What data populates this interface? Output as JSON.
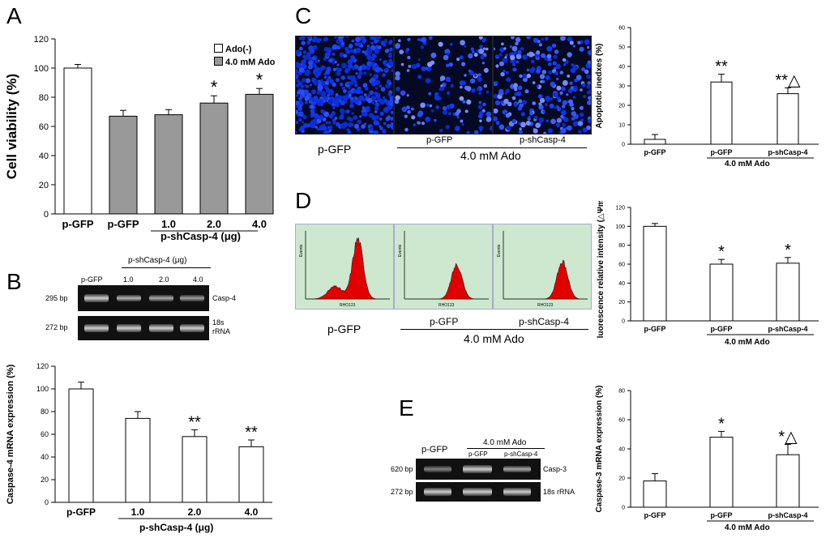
{
  "panels": {
    "A": {
      "letter": "A",
      "legend": [
        "Ado(-)",
        "4.0 mM Ado"
      ],
      "group_label": "p-shCasp-4 (μg)"
    },
    "B": {
      "letter": "B",
      "gel_header": "p-shCasp-4 (μg)",
      "gel_lanes": [
        "p-GFP",
        "1.0",
        "2.0",
        "4.0"
      ],
      "gel_rows": [
        {
          "size": "295 bp",
          "name": "Casp-4"
        },
        {
          "size": "272 bp",
          "name": "18s rRNA"
        }
      ],
      "group_label": "p-shCasp-4 (μg)"
    },
    "C": {
      "letter": "C",
      "image_labels": [
        "p-GFP",
        "p-GFP",
        "p-shCasp-4"
      ],
      "image_group": "4.0 mM Ado",
      "group_label": "4.0 mM Ado"
    },
    "D": {
      "letter": "D",
      "hist_labels": [
        "p-GFP",
        "p-GFP",
        "p-shCasp-4"
      ],
      "hist_group": "4.0 mM Ado",
      "hist_axis": [
        "RHO123",
        "RHO123",
        "RHO123"
      ],
      "hist_yaxis": [
        "Events",
        "Events",
        "Events"
      ],
      "group_label": "4.0 mM Ado"
    },
    "E": {
      "letter": "E",
      "gel_header": "4.0 mM Ado",
      "gel_lanes": [
        "p-GFP",
        "p-GFP",
        "p-shCasp-4"
      ],
      "gel_rows": [
        {
          "size": "620 bp",
          "name": "Casp-3"
        },
        {
          "size": "272 bp",
          "name": "18s rRNA"
        }
      ],
      "group_label": "4.0 mM Ado"
    }
  },
  "chart_data": [
    {
      "id": "A",
      "type": "bar",
      "ylabel": "Cell viability (%)",
      "categories": [
        "p-GFP",
        "p-GFP",
        "1.0",
        "2.0",
        "4.0"
      ],
      "values": [
        100,
        67,
        68,
        76,
        82
      ],
      "errors": [
        2.5,
        4,
        3.5,
        5,
        4
      ],
      "fills": [
        "#ffffff",
        "#999999",
        "#999999",
        "#999999",
        "#999999"
      ],
      "marks": [
        "",
        "",
        "",
        "*",
        "*"
      ],
      "ylim": [
        0,
        120
      ],
      "yticks": [
        0,
        20,
        40,
        60,
        80,
        100,
        120
      ]
    },
    {
      "id": "B",
      "type": "bar",
      "ylabel": "Caspase-4 mRNA expression (%)",
      "categories": [
        "p-GFP",
        "1.0",
        "2.0",
        "4.0"
      ],
      "values": [
        100,
        74,
        58,
        49
      ],
      "errors": [
        6,
        6,
        6,
        6
      ],
      "marks": [
        "",
        "",
        "**",
        "**"
      ],
      "ylim": [
        0,
        120
      ],
      "yticks": [
        0,
        20,
        40,
        60,
        80,
        100,
        120
      ]
    },
    {
      "id": "C",
      "type": "bar",
      "ylabel": "Apoptotic inedxes (%)",
      "categories": [
        "p-GFP",
        "p-GFP",
        "p-shCasp-4"
      ],
      "values": [
        2.5,
        32,
        26
      ],
      "errors": [
        2.5,
        4,
        3
      ],
      "marks": [
        "",
        "**",
        "**△"
      ],
      "ylim": [
        0,
        60
      ],
      "yticks": [
        0,
        10,
        20,
        30,
        40,
        50,
        60
      ]
    },
    {
      "id": "D",
      "type": "bar",
      "ylabel": "Fluorescence relative intensity (△Ψm, %)",
      "categories": [
        "p-GFP",
        "p-GFP",
        "p-shCasp-4"
      ],
      "values": [
        100,
        60,
        61
      ],
      "errors": [
        3,
        5,
        6
      ],
      "marks": [
        "",
        "*",
        "*"
      ],
      "ylim": [
        0,
        120
      ],
      "yticks": [
        0,
        20,
        40,
        60,
        80,
        100,
        120
      ]
    },
    {
      "id": "E",
      "type": "bar",
      "ylabel": "Caspase-3 mRNA expression (%)",
      "categories": [
        "p-GFP",
        "p-GFP",
        "p-shCasp-4"
      ],
      "values": [
        18,
        48,
        36
      ],
      "errors": [
        5,
        4,
        7
      ],
      "marks": [
        "",
        "*",
        "*△"
      ],
      "ylim": [
        0,
        80
      ],
      "yticks": [
        0,
        20,
        40,
        60,
        80
      ]
    }
  ]
}
